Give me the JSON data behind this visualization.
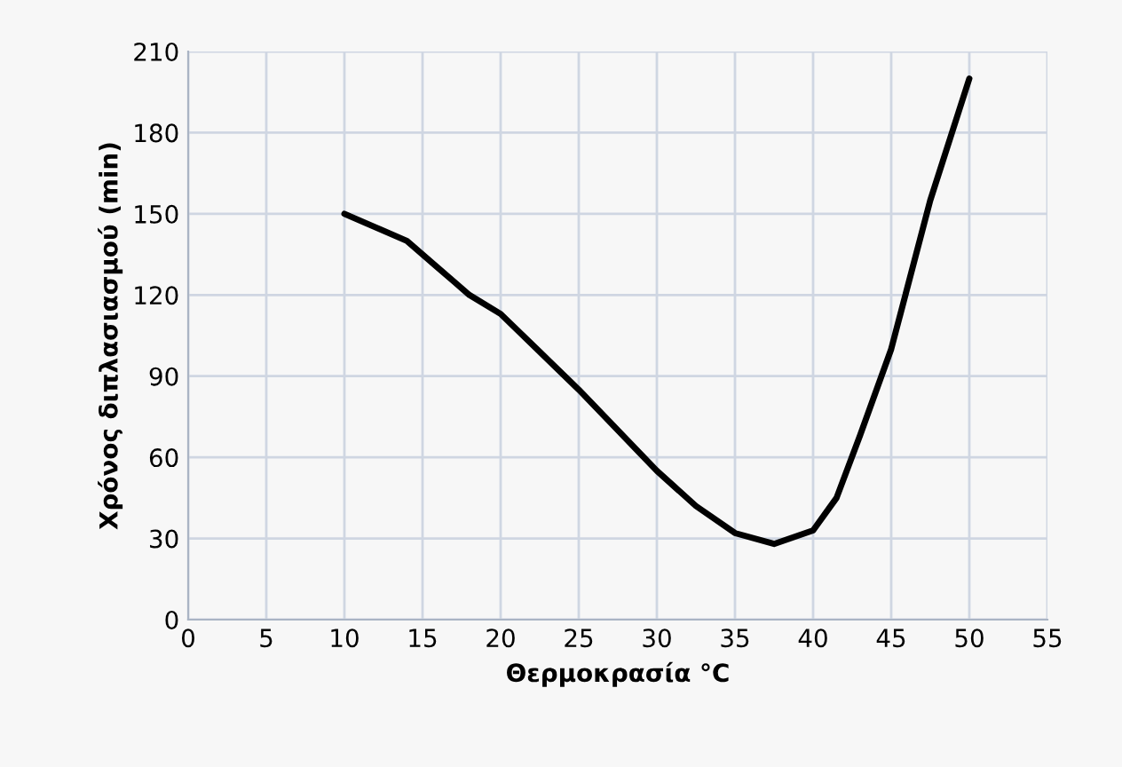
{
  "chart_data": {
    "type": "line",
    "xlabel": "Θερμοκρασία °C",
    "ylabel": "Χρόνος διπλασιασμού (min)",
    "x": [
      10,
      12,
      14,
      16,
      18,
      20,
      22.5,
      25,
      27.5,
      30,
      32.5,
      35,
      37.5,
      40,
      41.5,
      43,
      45,
      47.5,
      50
    ],
    "series": [
      {
        "color": "#000000",
        "values": [
          150,
          145,
          140,
          130,
          120,
          113,
          99,
          85,
          70,
          55,
          42,
          32,
          28,
          33,
          45,
          68,
          100,
          155,
          200
        ]
      }
    ],
    "xlim": [
      0,
      55
    ],
    "xticks": [
      0,
      5,
      10,
      15,
      20,
      25,
      30,
      35,
      40,
      45,
      50,
      55
    ],
    "ylim": [
      0,
      210
    ],
    "yticks": [
      0,
      30,
      60,
      90,
      120,
      150,
      180,
      210
    ],
    "grid": true,
    "marker": "none",
    "line_style": "solid"
  }
}
